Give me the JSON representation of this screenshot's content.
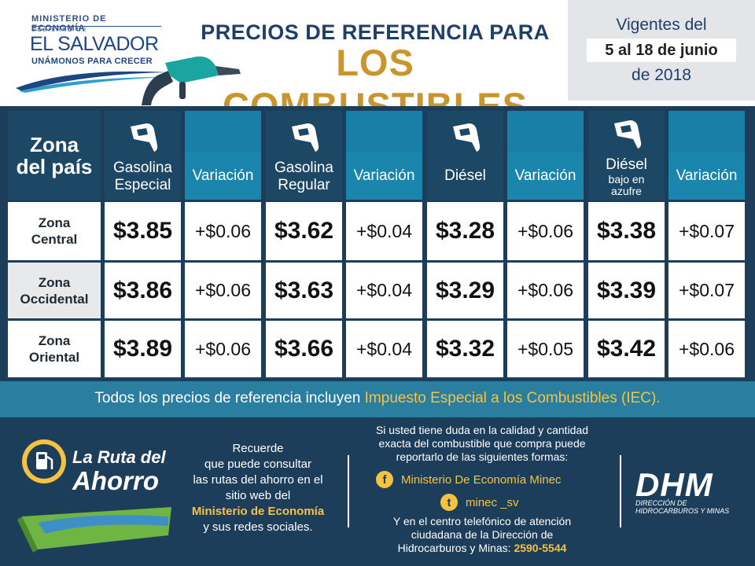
{
  "header": {
    "ministry": "MINISTERIO DE ECONOMÍA",
    "gobierno": "GOBIERNO DE",
    "country": "EL SALVADOR",
    "motto": "UNÁMONOS PARA CRECER",
    "title_line1": "PRECIOS DE REFERENCIA PARA",
    "title_line2": "LOS COMBUSTIBLES",
    "vigentes_label": "Vigentes del",
    "vigentes_range": "5 al 18 de junio",
    "vigentes_year": "de 2018"
  },
  "table": {
    "zone_header": [
      "Zona",
      "del país"
    ],
    "variation_label": "Variación",
    "fuels": [
      {
        "name": [
          "Gasolina",
          "Especial"
        ]
      },
      {
        "name": [
          "Gasolina",
          "Regular"
        ]
      },
      {
        "name": [
          "Diésel"
        ]
      },
      {
        "name": [
          "Diésel",
          "bajo en",
          "azufre"
        ]
      }
    ],
    "rows": [
      {
        "zone": [
          "Zona",
          "Central"
        ],
        "values": [
          {
            "price": "$3.85",
            "var": "+$0.06"
          },
          {
            "price": "$3.62",
            "var": "+$0.04"
          },
          {
            "price": "$3.28",
            "var": "+$0.06"
          },
          {
            "price": "$3.38",
            "var": "+$0.07"
          }
        ]
      },
      {
        "zone": [
          "Zona",
          "Occidental"
        ],
        "values": [
          {
            "price": "$3.86",
            "var": "+$0.06"
          },
          {
            "price": "$3.63",
            "var": "+$0.04"
          },
          {
            "price": "$3.29",
            "var": "+$0.06"
          },
          {
            "price": "$3.39",
            "var": "+$0.07"
          }
        ]
      },
      {
        "zone": [
          "Zona",
          "Oriental"
        ],
        "values": [
          {
            "price": "$3.89",
            "var": "+$0.06"
          },
          {
            "price": "$3.66",
            "var": "+$0.04"
          },
          {
            "price": "$3.32",
            "var": "+$0.05"
          },
          {
            "price": "$3.42",
            "var": "+$0.06"
          }
        ]
      }
    ]
  },
  "iec": {
    "text_before": "Todos los precios de referencia incluyen ",
    "highlight": "Impuesto Especial a los Combustibles (IEC)."
  },
  "footer": {
    "ruta_line1": "La Ruta del",
    "ruta_line2": "Ahorro",
    "recuerde": [
      "Recuerde",
      "que puede consultar",
      "las rutas del ahorro en el",
      "sitio web del"
    ],
    "recuerde_strong": "Ministerio de Economía",
    "recuerde_end": "y sus redes sociales.",
    "duda": [
      "Si usted tiene duda en la calidad y cantidad",
      "exacta del combustible que compra puede",
      "reportarlo de las siguientes formas:"
    ],
    "facebook_icon_glyph": "f",
    "facebook": "Ministerio De Economía Minec",
    "twitter_icon_glyph": "t",
    "twitter": "minec _sv",
    "centro": [
      "Y en el centro telefónico de atención",
      "ciudadana de la Dirección de",
      "Hidrocarburos y Minas: "
    ],
    "phone": "2590-5544",
    "dhm": "DHM",
    "dhm_sub": [
      "DIRECCIÓN DE",
      "HIDROCARBUROS Y MINAS"
    ]
  },
  "colors": {
    "navy": "#1d3e5b",
    "teal": "#1a86ae",
    "gold": "#c9962e",
    "yellow": "#f5c242",
    "title_blue": "#1f3f6b"
  },
  "icons": {
    "fuel_nozzle": "fuel-nozzle-icon",
    "facebook": "facebook-icon",
    "twitter": "twitter-icon",
    "gas_station": "gas-station-icon"
  }
}
